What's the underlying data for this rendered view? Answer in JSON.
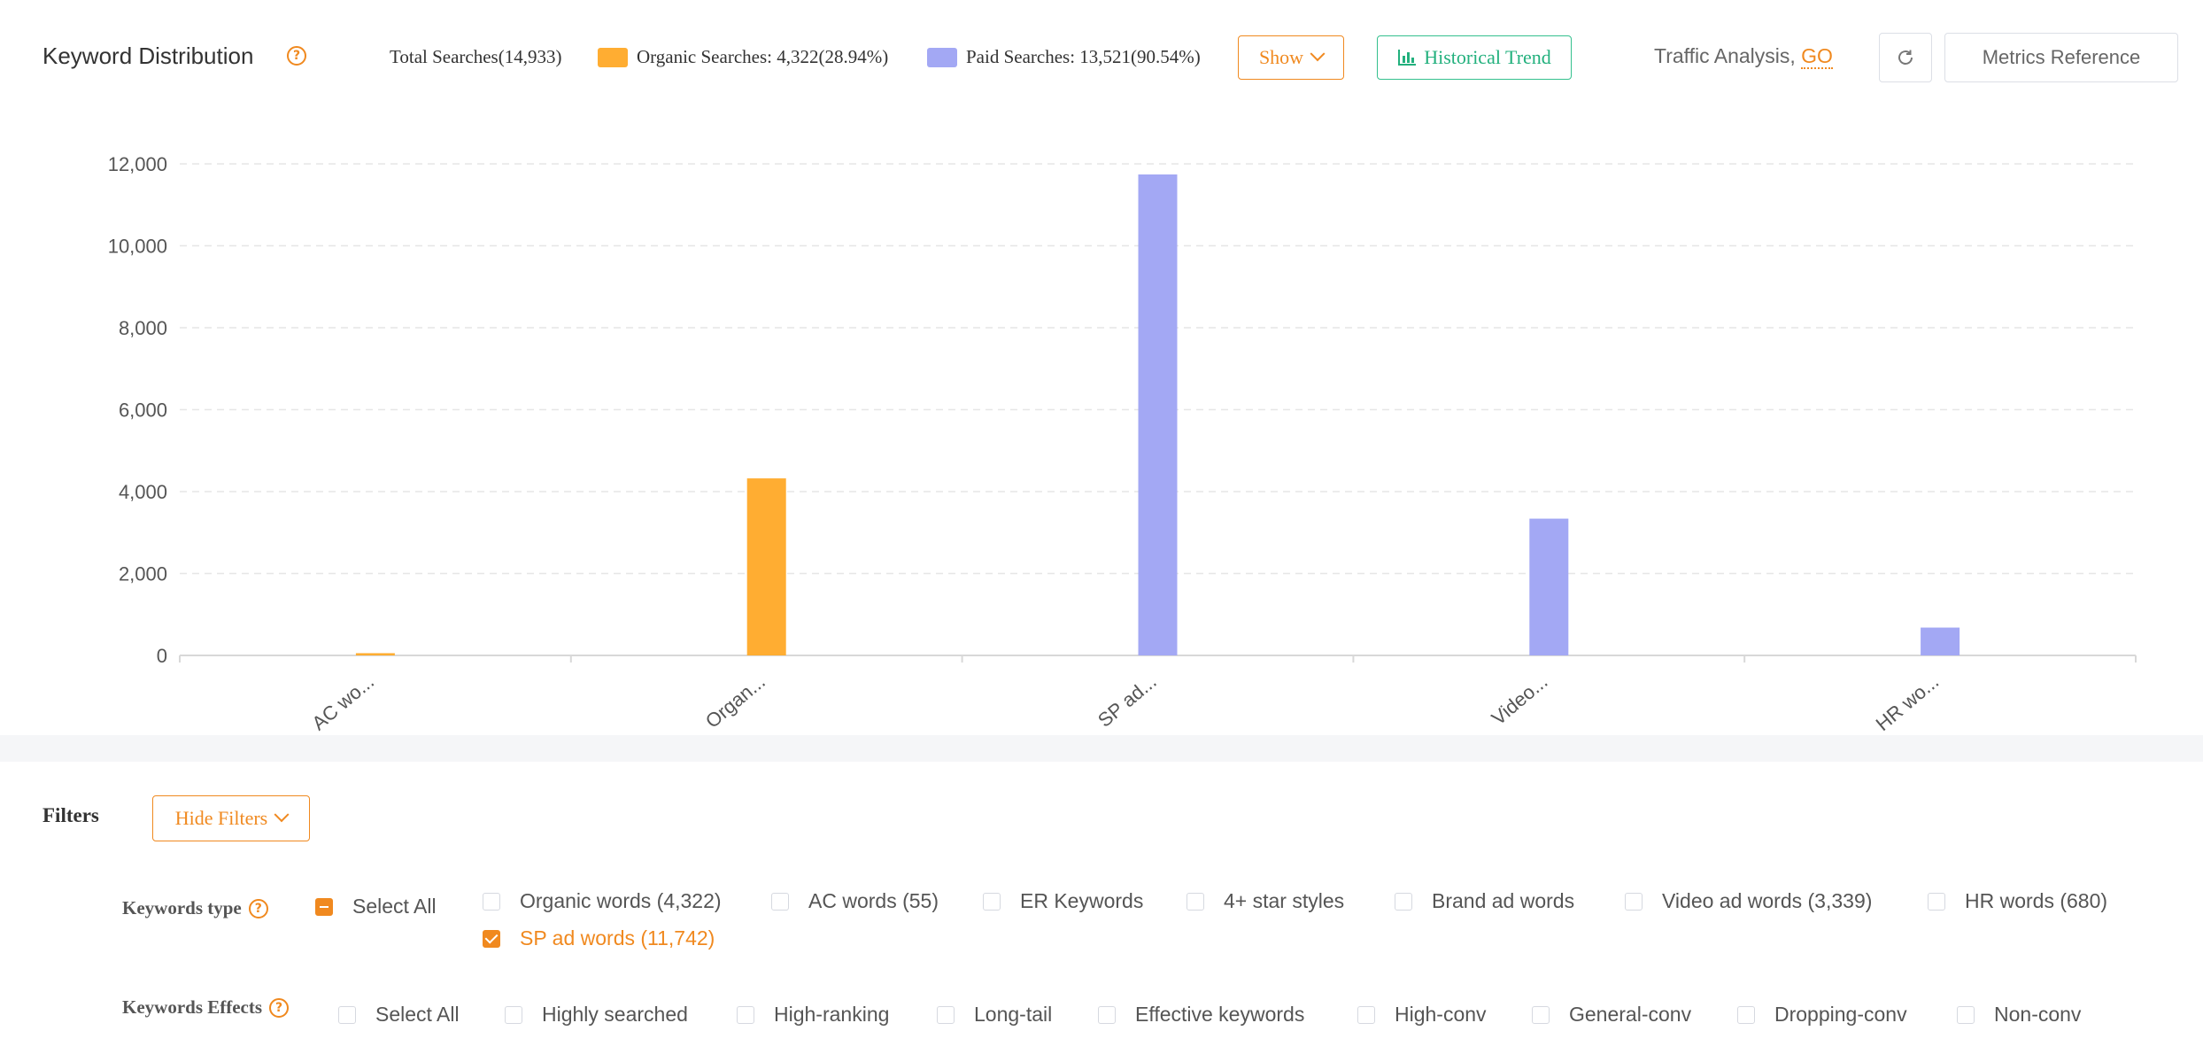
{
  "header": {
    "title": "Keyword Distribution",
    "total_label": "Total Searches(14,933)",
    "organic_label": "Organic Searches: 4,322(28.94%)",
    "paid_label": "Paid Searches: 13,521(90.54%)",
    "show_label": "Show",
    "trend_label": "Historical Trend",
    "traffic_text": "Traffic Analysis,",
    "go_label": "GO",
    "metrics_label": "Metrics Reference"
  },
  "colors": {
    "organic": "#ffad32",
    "paid": "#a3a8f4",
    "accent": "#f0891f",
    "green": "#22b07d"
  },
  "chart_data": {
    "type": "bar",
    "categories": [
      "AC wo...",
      "Organ...",
      "SP ad...",
      "Video...",
      "HR wo..."
    ],
    "series": [
      {
        "name": "Organic Searches",
        "values": [
          55,
          4322,
          null,
          null,
          null
        ]
      },
      {
        "name": "Paid Searches",
        "values": [
          null,
          null,
          11742,
          3339,
          680
        ]
      }
    ],
    "ylim": [
      0,
      12000
    ],
    "yticks": [
      "0",
      "2,000",
      "4,000",
      "6,000",
      "8,000",
      "10,000",
      "12,000"
    ],
    "grid": true
  },
  "filters": {
    "title": "Filters",
    "hide_label": "Hide Filters",
    "type_label": "Keywords type",
    "type_options": [
      "Select All",
      "Organic words (4,322)",
      "AC words (55)",
      "ER Keywords",
      "4+ star styles",
      "Brand ad words",
      "Video ad words (3,339)",
      "HR words (680)",
      "SP ad words (11,742)"
    ],
    "effects_label": "Keywords Effects",
    "effects_options": [
      "Select All",
      "Highly searched",
      "High-ranking",
      "Long-tail",
      "Effective keywords",
      "High-conv",
      "General-conv",
      "Dropping-conv",
      "Non-conv"
    ]
  }
}
